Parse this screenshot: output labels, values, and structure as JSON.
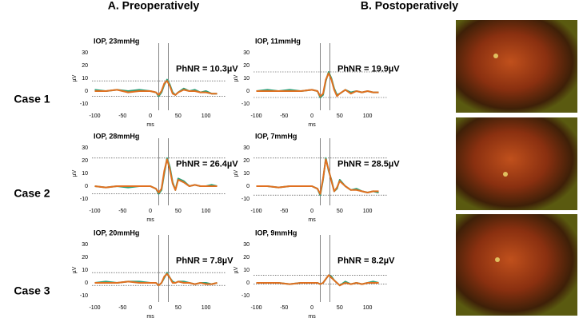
{
  "columns": [
    "A.  Preoperatively",
    "B.  Postoperatively"
  ],
  "cases": [
    "Case 1",
    "Case 2",
    "Case 3"
  ],
  "chart_data": [
    {
      "type": "line",
      "iop": "IOP, 23mmHg",
      "phnr": "PhNR = 10.3µV",
      "xlabel": "ms",
      "ylabel": "µV",
      "xlim": [
        -105,
        125
      ],
      "xticks": [
        -100,
        -50,
        0,
        50,
        100
      ],
      "ylim": [
        -15,
        35
      ],
      "yticks": [
        -10,
        0,
        10,
        20,
        30
      ],
      "ref_x": [
        15,
        32
      ],
      "ref_y": [
        8,
        -4
      ],
      "x": [
        -100,
        -80,
        -60,
        -40,
        -20,
        0,
        10,
        15,
        20,
        25,
        30,
        35,
        40,
        45,
        50,
        60,
        70,
        80,
        90,
        100,
        110,
        120
      ],
      "series": [
        {
          "color": "#2e9e78",
          "values": [
            1,
            0,
            1,
            0,
            1,
            0,
            -1,
            -4,
            -1,
            5,
            9,
            5,
            -1,
            -3,
            -1,
            2,
            0,
            1,
            -1,
            0,
            -2,
            -2
          ]
        },
        {
          "color": "#e07020",
          "values": [
            0,
            0,
            1,
            -1,
            0,
            0,
            -1,
            -3,
            0,
            6,
            8,
            4,
            -2,
            -3,
            -1,
            1,
            0,
            0,
            -1,
            -1,
            -2,
            -2
          ]
        }
      ]
    },
    {
      "type": "line",
      "iop": "IOP, 11mmHg",
      "phnr": "PhNR = 19.9µV",
      "xlabel": "ms",
      "ylabel": "µV",
      "xlim": [
        -105,
        125
      ],
      "xticks": [
        -100,
        -50,
        0,
        50,
        100
      ],
      "ylim": [
        -15,
        35
      ],
      "yticks": [
        -10,
        0,
        10,
        20,
        30
      ],
      "ref_x": [
        15,
        32
      ],
      "ref_y": [
        15,
        -5
      ],
      "x": [
        -100,
        -80,
        -60,
        -40,
        -20,
        0,
        10,
        15,
        20,
        25,
        30,
        35,
        40,
        45,
        50,
        60,
        70,
        80,
        90,
        100,
        110,
        120
      ],
      "series": [
        {
          "color": "#2e9e78",
          "values": [
            0,
            1,
            0,
            1,
            0,
            1,
            0,
            -5,
            -3,
            8,
            15,
            10,
            2,
            -3,
            -2,
            1,
            -1,
            0,
            -1,
            0,
            -1,
            -1
          ]
        },
        {
          "color": "#e07020",
          "values": [
            0,
            0,
            0,
            0,
            0,
            1,
            0,
            -4,
            -2,
            9,
            14,
            9,
            1,
            -4,
            -2,
            1,
            -2,
            0,
            -1,
            0,
            -1,
            -1
          ]
        }
      ]
    },
    {
      "type": "line",
      "iop": "IOP, 28mmHg",
      "phnr": "PhNR = 26.4µV",
      "xlabel": "ms",
      "ylabel": "µV",
      "xlim": [
        -105,
        125
      ],
      "xticks": [
        -100,
        -50,
        0,
        50,
        100
      ],
      "ylim": [
        -15,
        35
      ],
      "yticks": [
        -10,
        0,
        10,
        20,
        30
      ],
      "ref_x": [
        15,
        32
      ],
      "ref_y": [
        22,
        -6
      ],
      "x": [
        -100,
        -80,
        -60,
        -40,
        -20,
        0,
        10,
        15,
        20,
        25,
        30,
        35,
        40,
        45,
        50,
        60,
        70,
        80,
        90,
        100,
        110,
        120
      ],
      "series": [
        {
          "color": "#2e9e78",
          "values": [
            0,
            -1,
            0,
            -1,
            0,
            0,
            -2,
            -6,
            -3,
            10,
            22,
            15,
            3,
            -3,
            6,
            4,
            0,
            1,
            0,
            0,
            1,
            0
          ]
        },
        {
          "color": "#e07020",
          "values": [
            0,
            -1,
            0,
            0,
            0,
            0,
            -2,
            -5,
            -2,
            12,
            21,
            13,
            2,
            -3,
            5,
            3,
            0,
            1,
            0,
            0,
            0,
            0
          ]
        }
      ]
    },
    {
      "type": "line",
      "iop": "IOP, 7mmHg",
      "phnr": "PhNR = 28.5µV",
      "xlabel": "ms",
      "ylabel": "µV",
      "xlim": [
        -105,
        125
      ],
      "xticks": [
        -100,
        -50,
        0,
        50,
        100
      ],
      "ylim": [
        -15,
        35
      ],
      "yticks": [
        -10,
        0,
        10,
        20,
        30
      ],
      "ref_x": [
        15,
        32
      ],
      "ref_y": [
        22,
        -7
      ],
      "x": [
        -100,
        -80,
        -60,
        -40,
        -20,
        0,
        10,
        15,
        20,
        25,
        30,
        35,
        40,
        45,
        50,
        60,
        70,
        80,
        90,
        100,
        110,
        120
      ],
      "series": [
        {
          "color": "#2e9e78",
          "values": [
            0,
            0,
            -1,
            0,
            0,
            0,
            -2,
            -7,
            5,
            22,
            12,
            5,
            -4,
            -2,
            5,
            0,
            -3,
            -2,
            -4,
            -5,
            -4,
            -5
          ]
        },
        {
          "color": "#e07020",
          "values": [
            0,
            0,
            -1,
            0,
            0,
            0,
            -2,
            -6,
            6,
            21,
            13,
            4,
            -4,
            -1,
            4,
            0,
            -3,
            -3,
            -4,
            -5,
            -4,
            -4
          ]
        }
      ]
    },
    {
      "type": "line",
      "iop": "IOP, 20mmHg",
      "phnr": "PhNR = 7.8µV",
      "xlabel": "ms",
      "ylabel": "µV",
      "xlim": [
        -105,
        125
      ],
      "xticks": [
        -100,
        -50,
        0,
        50,
        100
      ],
      "ylim": [
        -15,
        35
      ],
      "yticks": [
        -10,
        0,
        10,
        20,
        30
      ],
      "ref_x": [
        15,
        32
      ],
      "ref_y": [
        8,
        -2
      ],
      "x": [
        -100,
        -80,
        -60,
        -40,
        -20,
        0,
        10,
        15,
        20,
        25,
        30,
        35,
        40,
        45,
        50,
        60,
        70,
        80,
        90,
        100,
        110,
        120
      ],
      "series": [
        {
          "color": "#2e9e78",
          "values": [
            0,
            1,
            0,
            1,
            1,
            0,
            0,
            -2,
            0,
            4,
            8,
            4,
            1,
            0,
            1,
            1,
            0,
            -1,
            0,
            0,
            -1,
            0
          ]
        },
        {
          "color": "#e07020",
          "values": [
            0,
            0,
            0,
            1,
            0,
            0,
            0,
            -2,
            0,
            5,
            7,
            4,
            0,
            0,
            1,
            0,
            0,
            -1,
            0,
            -1,
            -1,
            0
          ]
        }
      ]
    },
    {
      "type": "line",
      "iop": "IOP, 9mmHg",
      "phnr": "PhNR = 8.2µV",
      "xlabel": "ms",
      "ylabel": "µV",
      "xlim": [
        -105,
        125
      ],
      "xticks": [
        -100,
        -50,
        0,
        50,
        100
      ],
      "ylim": [
        -15,
        35
      ],
      "yticks": [
        -10,
        0,
        10,
        20,
        30
      ],
      "ref_x": [
        15,
        32
      ],
      "ref_y": [
        6,
        -1
      ],
      "x": [
        -100,
        -80,
        -60,
        -40,
        -20,
        0,
        10,
        15,
        20,
        25,
        30,
        35,
        40,
        45,
        50,
        60,
        70,
        80,
        90,
        100,
        110,
        120
      ],
      "series": [
        {
          "color": "#2e9e78",
          "values": [
            0,
            0,
            0,
            -1,
            0,
            0,
            0,
            -1,
            0,
            3,
            6,
            5,
            2,
            0,
            -2,
            1,
            -1,
            0,
            -1,
            0,
            1,
            0
          ]
        },
        {
          "color": "#e07020",
          "values": [
            0,
            0,
            0,
            -1,
            0,
            0,
            0,
            -1,
            0,
            3,
            6,
            4,
            2,
            0,
            -2,
            0,
            -1,
            0,
            -1,
            0,
            0,
            0
          ]
        }
      ]
    }
  ]
}
